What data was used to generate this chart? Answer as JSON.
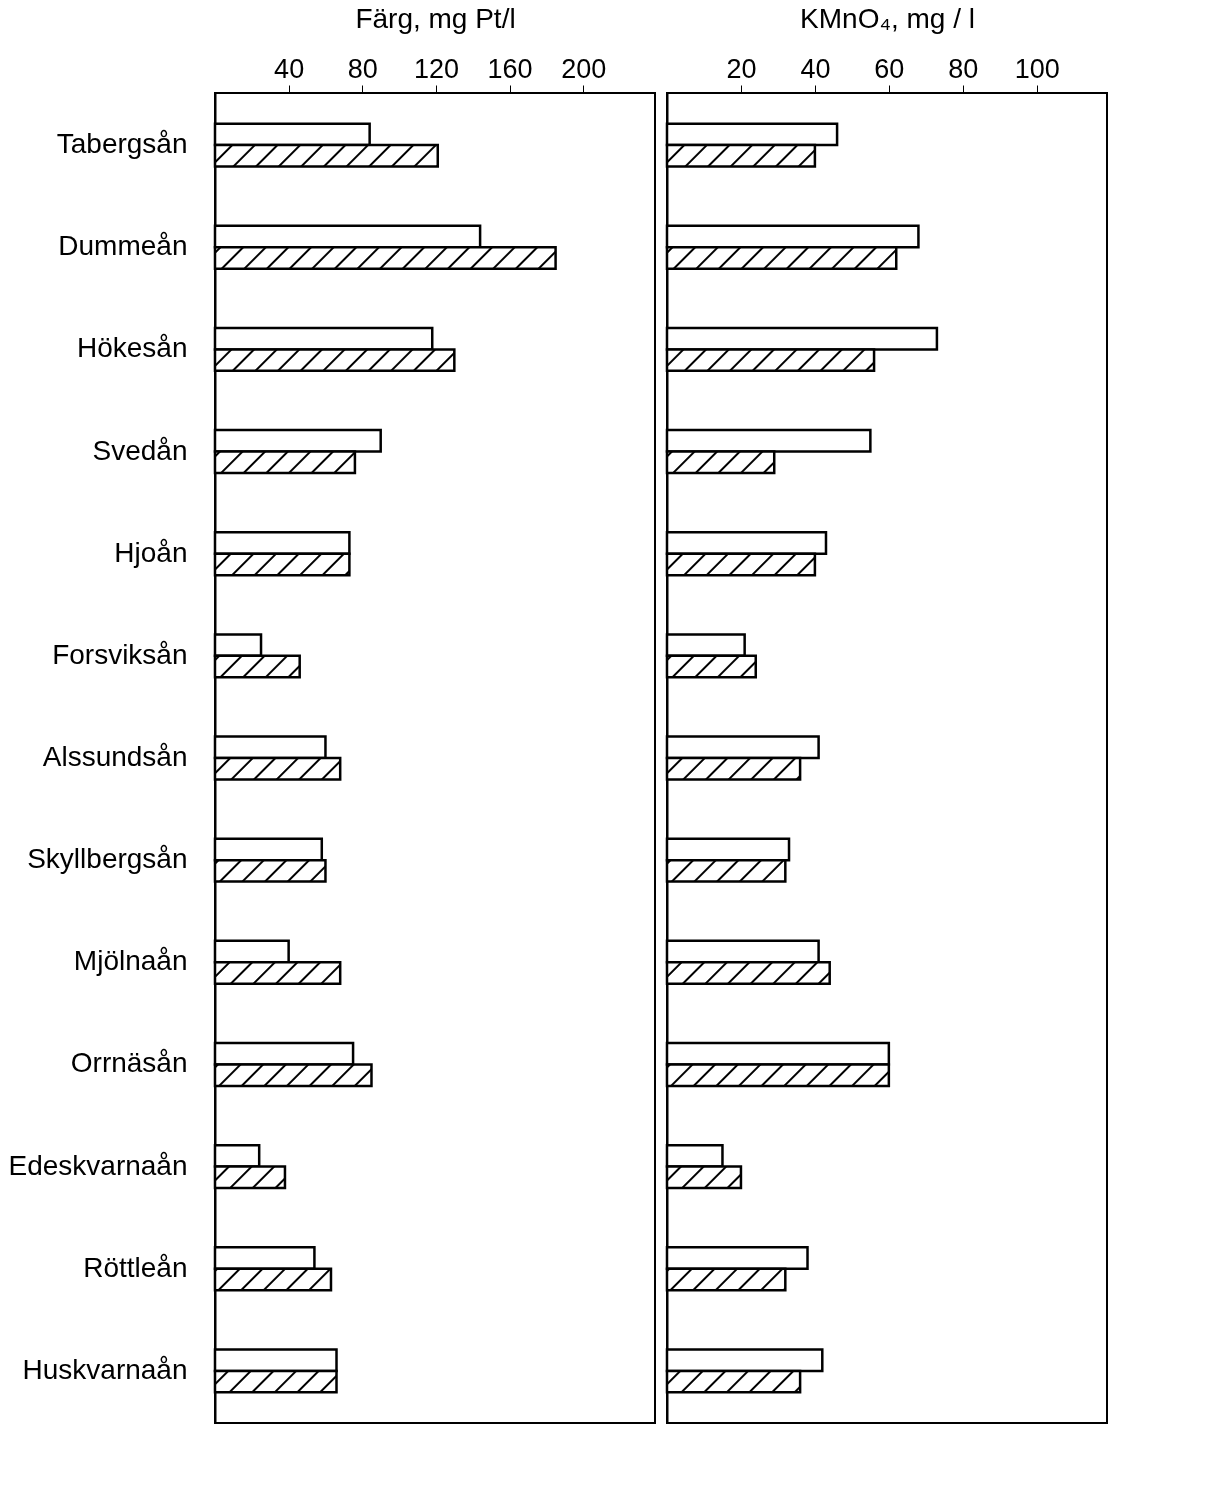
{
  "chart_data": [
    {
      "type": "bar",
      "orientation": "horizontal",
      "xlabel": "Färg, mg Pt/l",
      "categories": [
        "Tabergsån",
        "Dummeån",
        "Hökesån",
        "Svedån",
        "Hjoån",
        "Forsviksån",
        "Alssundsån",
        "Skyllbergsån",
        "Mjölnaån",
        "Orrnäsån",
        "Edeskvarnaån",
        "Röttleån",
        "Huskvarnaån"
      ],
      "series": [
        {
          "color": "#ffffff",
          "values": [
            84,
            144,
            118,
            90,
            73,
            25,
            60,
            58,
            40,
            75,
            24,
            54,
            66
          ]
        },
        {
          "color": "#000000",
          "values": [
            121,
            185,
            130,
            76,
            73,
            46,
            68,
            60,
            68,
            85,
            38,
            63,
            66
          ]
        }
      ],
      "xlim": [
        0,
        239
      ],
      "xticks": [
        40,
        80,
        120,
        160,
        200
      ],
      "grid": false,
      "legend": false
    },
    {
      "type": "bar",
      "orientation": "horizontal",
      "xlabel": "KMnO₄, mg / l",
      "categories": [
        null,
        null,
        null,
        null,
        null,
        null,
        null,
        null,
        null,
        null,
        null,
        null,
        null
      ],
      "series": [
        {
          "color": "#ffffff",
          "values": [
            46,
            68,
            73,
            55,
            43,
            21,
            41,
            33,
            41,
            60,
            15,
            38,
            42
          ]
        },
        {
          "color": "#000000",
          "values": [
            40,
            62,
            56,
            29,
            40,
            24,
            36,
            32,
            44,
            60,
            20,
            32,
            36
          ]
        }
      ],
      "xlim": [
        0,
        119
      ],
      "xticks": [
        20,
        40,
        60,
        80,
        100
      ],
      "grid": false,
      "legend": false,
      "tick_labels": "x"
    }
  ]
}
